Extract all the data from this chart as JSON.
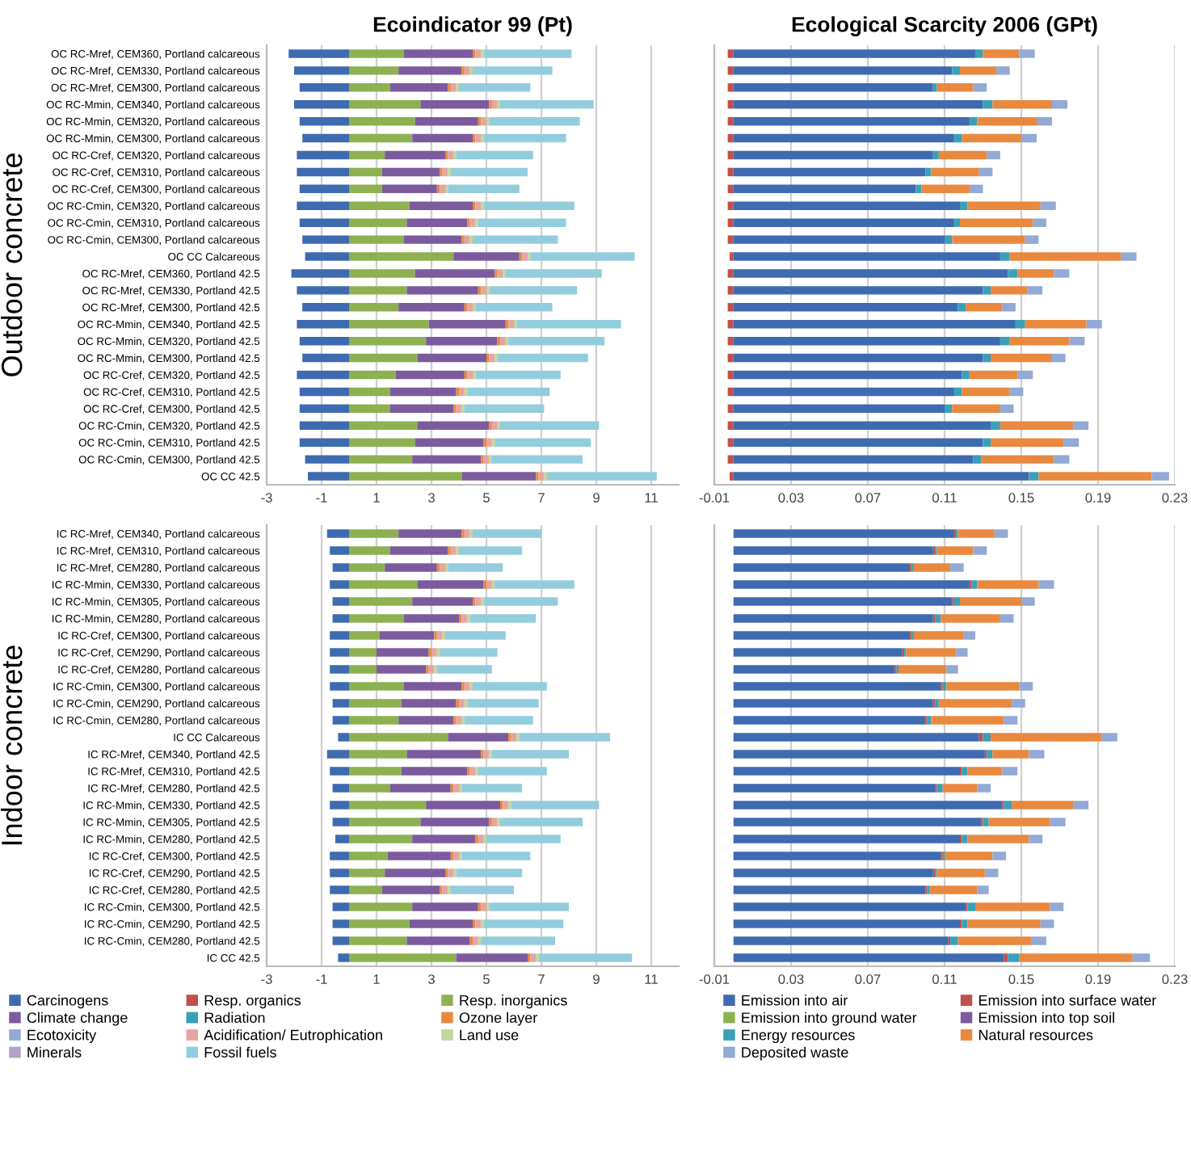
{
  "chart_data": [
    {
      "type": "bar",
      "orientation": "horizontal",
      "stacked": true,
      "title": "Ecoindicator 99 (Pt)",
      "annotations": [
        "Outdoor concrete"
      ],
      "categories": [
        "OC RC-Mref, CEM360, Portland calcareous",
        "OC RC-Mref, CEM330, Portland calcareous",
        "OC RC-Mref, CEM300, Portland calcareous",
        "OC RC-Mmin, CEM340, Portland calcareous",
        "OC RC-Mmin, CEM320, Portland calcareous",
        "OC RC-Mmin, CEM300, Portland calcareous",
        "OC RC-Cref, CEM320, Portland calcareous",
        "OC RC-Cref, CEM310, Portland calcareous",
        "OC RC-Cref, CEM300, Portland calcareous",
        "OC RC-Cmin, CEM320, Portland calcareous",
        "OC RC-Cmin, CEM310, Portland calcareous",
        "OC RC-Cmin, CEM300, Portland calcareous",
        "OC CC Calcareous",
        "OC RC-Mref, CEM360, Portland 42.5",
        "OC RC-Mref, CEM330, Portland 42.5",
        "OC RC-Mref, CEM300, Portland 42.5",
        "OC RC-Mmin, CEM340, Portland 42.5",
        "OC RC-Mmin, CEM320, Portland 42.5",
        "OC RC-Mmin, CEM300, Portland 42.5",
        "OC RC-Cref, CEM320, Portland 42.5",
        "OC RC-Cref, CEM310, Portland 42.5",
        "OC RC-Cref, CEM300, Portland 42.5",
        "OC RC-Cmin, CEM320, Portland 42.5",
        "OC RC-Cmin, CEM310, Portland 42.5",
        "OC RC-Cmin, CEM300, Portland 42.5",
        "OC CC 42.5"
      ],
      "series": [
        {
          "name": "Carcinogens",
          "color": "#3e6bb0",
          "values": [
            -2.2,
            -2.0,
            -1.8,
            -2.0,
            -1.8,
            -1.7,
            -1.9,
            -1.9,
            -1.8,
            -1.9,
            -1.8,
            -1.7,
            -1.6,
            -2.1,
            -1.9,
            -1.7,
            -1.9,
            -1.8,
            -1.7,
            -1.9,
            -1.8,
            -1.8,
            -1.8,
            -1.8,
            -1.6,
            -1.5
          ]
        },
        {
          "name": "Resp. organics",
          "color": "#c0504d",
          "values": [
            0,
            0,
            0,
            0,
            0,
            0,
            0,
            0,
            0,
            0,
            0,
            0,
            0,
            0,
            0,
            0,
            0,
            0,
            0,
            0,
            0,
            0,
            0,
            0,
            0,
            0
          ]
        },
        {
          "name": "Resp. inorganics",
          "color": "#8db150",
          "values": [
            2.0,
            1.8,
            1.5,
            2.6,
            2.4,
            2.3,
            1.3,
            1.2,
            1.2,
            2.2,
            2.1,
            2.0,
            3.8,
            2.4,
            2.1,
            1.8,
            2.9,
            2.8,
            2.5,
            1.7,
            1.5,
            1.5,
            2.5,
            2.4,
            2.3,
            4.1
          ]
        },
        {
          "name": "Climate change",
          "color": "#7b5b9e",
          "values": [
            2.5,
            2.3,
            2.1,
            2.5,
            2.3,
            2.2,
            2.2,
            2.1,
            2.0,
            2.3,
            2.2,
            2.1,
            2.4,
            2.9,
            2.6,
            2.4,
            2.8,
            2.6,
            2.5,
            2.5,
            2.4,
            2.3,
            2.6,
            2.5,
            2.5,
            2.7
          ]
        },
        {
          "name": "Radiation",
          "color": "#3aa0b8",
          "values": [
            0,
            0,
            0,
            0,
            0,
            0,
            0,
            0,
            0,
            0,
            0,
            0,
            0,
            0,
            0,
            0,
            0,
            0,
            0,
            0,
            0,
            0,
            0,
            0,
            0,
            0
          ]
        },
        {
          "name": "Ozone layer",
          "color": "#e8893f",
          "values": [
            0.1,
            0.1,
            0.1,
            0.1,
            0.1,
            0.1,
            0.1,
            0.1,
            0.1,
            0.1,
            0.1,
            0.1,
            0.1,
            0.1,
            0.1,
            0.1,
            0.1,
            0.1,
            0.1,
            0.1,
            0.1,
            0.1,
            0.1,
            0.1,
            0.1,
            0.1
          ]
        },
        {
          "name": "Ecotoxicity",
          "color": "#93a9d6",
          "values": [
            0,
            0,
            0,
            0,
            0,
            0,
            0,
            0,
            0,
            0,
            0,
            0,
            0,
            0,
            0,
            0,
            0,
            0,
            0,
            0,
            0,
            0,
            0,
            0,
            0,
            0
          ]
        },
        {
          "name": "Acidification/ Eutrophication",
          "color": "#e4a5a3",
          "values": [
            0.2,
            0.2,
            0.2,
            0.2,
            0.2,
            0.2,
            0.2,
            0.2,
            0.2,
            0.2,
            0.2,
            0.2,
            0.2,
            0.2,
            0.2,
            0.2,
            0.2,
            0.2,
            0.2,
            0.2,
            0.2,
            0.2,
            0.2,
            0.2,
            0.2,
            0.2
          ]
        },
        {
          "name": "Land use",
          "color": "#c3d69b",
          "values": [
            0.1,
            0.1,
            0.1,
            0.1,
            0.1,
            0.1,
            0.1,
            0.1,
            0.1,
            0.1,
            0.1,
            0.1,
            0.1,
            0.1,
            0.1,
            0.1,
            0.1,
            0.1,
            0.1,
            0.1,
            0.1,
            0.1,
            0.1,
            0.1,
            0.1,
            0.1
          ]
        },
        {
          "name": "Minerals",
          "color": "#b3a2c7",
          "values": [
            0,
            0,
            0,
            0,
            0,
            0,
            0,
            0,
            0,
            0,
            0,
            0,
            0,
            0,
            0,
            0,
            0,
            0,
            0,
            0,
            0,
            0,
            0,
            0,
            0,
            0
          ]
        },
        {
          "name": "Fossil fuels",
          "color": "#93cddd",
          "values": [
            3.2,
            2.9,
            2.6,
            3.4,
            3.3,
            3.0,
            2.8,
            2.8,
            2.6,
            3.3,
            3.2,
            3.1,
            3.8,
            3.5,
            3.2,
            2.8,
            3.8,
            3.5,
            3.3,
            3.1,
            3.0,
            2.9,
            3.6,
            3.5,
            3.3,
            4.0
          ]
        }
      ],
      "xlim": [
        -3,
        12
      ],
      "xticks": [
        -3,
        -1,
        1,
        3,
        5,
        7,
        9,
        11
      ],
      "grid": "x",
      "legend": "bottom"
    },
    {
      "type": "bar",
      "orientation": "horizontal",
      "stacked": true,
      "title": "Ecological Scarcity 2006 (GPt)",
      "categories": [
        null,
        null,
        null,
        null,
        null,
        null,
        null,
        null,
        null,
        null,
        null,
        null,
        null,
        null,
        null,
        null,
        null,
        null,
        null,
        null,
        null,
        null,
        null,
        null,
        null,
        null
      ],
      "series": [
        {
          "name": "Emission into air",
          "color": "#3e6bb0",
          "values": [
            0.126,
            0.114,
            0.104,
            0.13,
            0.123,
            0.115,
            0.104,
            0.1,
            0.095,
            0.118,
            0.115,
            0.11,
            0.139,
            0.143,
            0.13,
            0.117,
            0.147,
            0.139,
            0.13,
            0.119,
            0.115,
            0.11,
            0.134,
            0.13,
            0.125,
            0.154
          ]
        },
        {
          "name": "Emission into surface water",
          "color": "#c0504d",
          "values": [
            -0.003,
            -0.003,
            -0.003,
            -0.003,
            -0.003,
            -0.003,
            -0.003,
            -0.003,
            -0.003,
            -0.003,
            -0.003,
            -0.003,
            -0.002,
            -0.003,
            -0.003,
            -0.003,
            -0.003,
            -0.003,
            -0.003,
            -0.003,
            -0.003,
            -0.003,
            -0.003,
            -0.003,
            -0.003,
            -0.002
          ]
        },
        {
          "name": "Emission into ground water",
          "color": "#8db150",
          "values": [
            0,
            0,
            0,
            0,
            0,
            0,
            0,
            0,
            0,
            0,
            0,
            0,
            0,
            0,
            0,
            0,
            0,
            0,
            0,
            0,
            0,
            0,
            0,
            0,
            0,
            0
          ]
        },
        {
          "name": "Emission into top soil",
          "color": "#7b5b9e",
          "values": [
            0,
            0,
            0,
            0,
            0,
            0,
            0,
            0,
            0,
            0,
            0,
            0,
            0,
            0,
            0,
            0,
            0,
            0,
            0,
            0,
            0,
            0,
            0,
            0,
            0,
            0
          ]
        },
        {
          "name": "Energy resources",
          "color": "#3aa0b8",
          "values": [
            0.004,
            0.004,
            0.002,
            0.005,
            0.004,
            0.004,
            0.003,
            0.003,
            0.003,
            0.004,
            0.003,
            0.004,
            0.005,
            0.005,
            0.004,
            0.004,
            0.005,
            0.005,
            0.004,
            0.004,
            0.004,
            0.004,
            0.005,
            0.004,
            0.004,
            0.005
          ]
        },
        {
          "name": "Natural resources",
          "color": "#e8893f",
          "values": [
            0.019,
            0.019,
            0.019,
            0.031,
            0.031,
            0.031,
            0.025,
            0.025,
            0.025,
            0.038,
            0.038,
            0.038,
            0.058,
            0.019,
            0.019,
            0.019,
            0.032,
            0.031,
            0.032,
            0.025,
            0.025,
            0.025,
            0.038,
            0.038,
            0.038,
            0.059
          ]
        },
        {
          "name": "Deposited waste",
          "color": "#93a9d6",
          "values": [
            0.008,
            0.007,
            0.007,
            0.008,
            0.008,
            0.008,
            0.007,
            0.007,
            0.007,
            0.008,
            0.007,
            0.007,
            0.008,
            0.008,
            0.008,
            0.007,
            0.008,
            0.008,
            0.007,
            0.008,
            0.007,
            0.007,
            0.008,
            0.008,
            0.008,
            0.009
          ]
        }
      ],
      "xlim": [
        -0.01,
        0.23
      ],
      "xticks": [
        -0.01,
        0.03,
        0.07,
        0.11,
        0.15,
        0.19,
        0.23
      ],
      "grid": "x",
      "legend": "bottom"
    },
    {
      "type": "bar",
      "orientation": "horizontal",
      "stacked": true,
      "annotations": [
        "Indoor concrete"
      ],
      "categories": [
        "IC RC-Mref, CEM340, Portland calcareous",
        "IC RC-Mref, CEM310, Portland calcareous",
        "IC RC-Mref, CEM280, Portland calcareous",
        "IC RC-Mmin, CEM330, Portland calcareous",
        "IC RC-Mmin, CEM305, Portland calcareous",
        "IC RC-Mmin, CEM280, Portland calcareous",
        "IC RC-Cref, CEM300, Portland calcareous",
        "IC RC-Cref, CEM290, Portland calcareous",
        "IC RC-Cref, CEM280, Portland calcareous",
        "IC RC-Cmin, CEM300, Portland calcareous",
        "IC RC-Cmin, CEM290, Portland calcareous",
        "IC RC-Cmin, CEM280, Portland calcareous",
        "IC CC Calcareous",
        "IC RC-Mref, CEM340, Portland 42.5",
        "IC RC-Mref, CEM310, Portland 42.5",
        "IC RC-Mref, CEM280, Portland 42.5",
        "IC RC-Mmin, CEM330, Portland 42.5",
        "IC RC-Mmin, CEM305, Portland 42.5",
        "IC RC-Mmin, CEM280, Portland 42.5",
        "IC RC-Cref, CEM300, Portland 42.5",
        "IC RC-Cref, CEM290, Portland 42.5",
        "IC RC-Cref, CEM280, Portland 42.5",
        "IC RC-Cmin, CEM300, Portland 42.5",
        "IC RC-Cmin, CEM290, Portland 42.5",
        "IC RC-Cmin, CEM280, Portland 42.5",
        "IC CC 42.5"
      ],
      "series": [
        {
          "color": "#3e6bb0",
          "values": [
            -0.8,
            -0.7,
            -0.6,
            -0.7,
            -0.6,
            -0.6,
            -0.7,
            -0.7,
            -0.7,
            -0.7,
            -0.6,
            -0.6,
            -0.4,
            -0.8,
            -0.7,
            -0.6,
            -0.7,
            -0.6,
            -0.5,
            -0.7,
            -0.7,
            -0.7,
            -0.6,
            -0.6,
            -0.6,
            -0.4
          ]
        },
        {
          "color": "#c0504d",
          "values": [
            0,
            0,
            0,
            0,
            0,
            0,
            0,
            0,
            0,
            0,
            0,
            0,
            0,
            0,
            0,
            0,
            0,
            0,
            0,
            0,
            0,
            0,
            0,
            0,
            0,
            0
          ]
        },
        {
          "color": "#8db150",
          "values": [
            1.8,
            1.5,
            1.3,
            2.5,
            2.3,
            2.0,
            1.1,
            1.0,
            1.0,
            2.0,
            1.9,
            1.8,
            3.6,
            2.1,
            1.9,
            1.5,
            2.8,
            2.6,
            2.3,
            1.4,
            1.3,
            1.2,
            2.3,
            2.2,
            2.1,
            3.9
          ]
        },
        {
          "color": "#7b5b9e",
          "values": [
            2.3,
            2.1,
            1.9,
            2.4,
            2.2,
            2.0,
            2.0,
            1.9,
            1.8,
            2.1,
            2.0,
            2.0,
            2.2,
            2.7,
            2.4,
            2.2,
            2.7,
            2.5,
            2.3,
            2.3,
            2.2,
            2.1,
            2.4,
            2.3,
            2.3,
            2.6
          ]
        },
        {
          "color": "#3aa0b8",
          "values": [
            0,
            0,
            0,
            0,
            0,
            0,
            0,
            0,
            0,
            0,
            0,
            0,
            0,
            0,
            0,
            0,
            0,
            0,
            0,
            0,
            0,
            0,
            0,
            0,
            0,
            0
          ]
        },
        {
          "color": "#e8893f",
          "values": [
            0.1,
            0.1,
            0.1,
            0.1,
            0.1,
            0.1,
            0.1,
            0.1,
            0.1,
            0.1,
            0.1,
            0.1,
            0.1,
            0.1,
            0.1,
            0.1,
            0.1,
            0.1,
            0.1,
            0.1,
            0.1,
            0.1,
            0.1,
            0.1,
            0.1,
            0.1
          ]
        },
        {
          "color": "#93a9d6",
          "values": [
            0,
            0,
            0,
            0,
            0,
            0,
            0,
            0,
            0,
            0,
            0,
            0,
            0,
            0,
            0,
            0,
            0,
            0,
            0,
            0,
            0,
            0,
            0,
            0,
            0,
            0
          ]
        },
        {
          "color": "#e4a5a3",
          "values": [
            0.2,
            0.2,
            0.2,
            0.2,
            0.2,
            0.2,
            0.2,
            0.2,
            0.2,
            0.2,
            0.2,
            0.2,
            0.2,
            0.2,
            0.2,
            0.2,
            0.2,
            0.2,
            0.2,
            0.2,
            0.2,
            0.2,
            0.2,
            0.2,
            0.2,
            0.2
          ]
        },
        {
          "color": "#c3d69b",
          "values": [
            0.1,
            0.1,
            0.1,
            0.1,
            0.1,
            0.1,
            0.1,
            0.1,
            0.1,
            0.1,
            0.1,
            0.1,
            0.1,
            0.1,
            0.1,
            0.1,
            0.1,
            0.1,
            0.1,
            0.1,
            0.1,
            0.1,
            0.1,
            0.1,
            0.1,
            0.1
          ]
        },
        {
          "color": "#b3a2c7",
          "values": [
            0,
            0,
            0,
            0,
            0,
            0,
            0,
            0,
            0,
            0,
            0,
            0,
            0,
            0,
            0,
            0,
            0,
            0,
            0,
            0,
            0,
            0,
            0,
            0,
            0,
            0
          ]
        },
        {
          "color": "#93cddd",
          "values": [
            2.5,
            2.3,
            2.0,
            2.9,
            2.7,
            2.4,
            2.2,
            2.1,
            2.0,
            2.7,
            2.6,
            2.5,
            3.3,
            2.8,
            2.5,
            2.2,
            3.2,
            3.0,
            2.7,
            2.5,
            2.4,
            2.3,
            2.9,
            2.9,
            2.7,
            3.4
          ]
        }
      ],
      "xlim": [
        -3,
        12
      ],
      "xticks": [
        -3,
        -1,
        1,
        3,
        5,
        7,
        9,
        11
      ],
      "grid": "x"
    },
    {
      "type": "bar",
      "orientation": "horizontal",
      "stacked": true,
      "categories": [
        null,
        null,
        null,
        null,
        null,
        null,
        null,
        null,
        null,
        null,
        null,
        null,
        null,
        null,
        null,
        null,
        null,
        null,
        null,
        null,
        null,
        null,
        null,
        null,
        null,
        null
      ],
      "series": [
        {
          "color": "#3e6bb0",
          "values": [
            0.115,
            0.104,
            0.092,
            0.123,
            0.114,
            0.104,
            0.092,
            0.088,
            0.084,
            0.108,
            0.104,
            0.1,
            0.128,
            0.131,
            0.118,
            0.105,
            0.14,
            0.129,
            0.118,
            0.108,
            0.104,
            0.1,
            0.121,
            0.118,
            0.112,
            0.141
          ]
        },
        {
          "color": "#c0504d",
          "values": [
            0.001,
            0.001,
            0.001,
            0.001,
            0.001,
            0.001,
            0.001,
            0.001,
            0.001,
            0.001,
            0.001,
            0.001,
            0.002,
            0.001,
            0.001,
            0.001,
            0.001,
            0.001,
            0.001,
            0.001,
            0.001,
            0.001,
            0.001,
            0.001,
            0.001,
            0.002
          ]
        },
        {
          "color": "#8db150",
          "values": [
            0,
            0,
            0,
            0,
            0,
            0,
            0,
            0,
            0,
            0,
            0,
            0,
            0,
            0,
            0,
            0,
            0,
            0,
            0,
            0,
            0,
            0,
            0,
            0,
            0,
            0
          ]
        },
        {
          "color": "#7b5b9e",
          "values": [
            0,
            0,
            0,
            0,
            0,
            0,
            0,
            0,
            0,
            0,
            0,
            0,
            0,
            0,
            0,
            0,
            0,
            0,
            0,
            0,
            0,
            0,
            0,
            0,
            0,
            0
          ]
        },
        {
          "color": "#3aa0b8",
          "values": [
            0.001,
            0.001,
            0.001,
            0.003,
            0.003,
            0.003,
            0.001,
            0.001,
            0.001,
            0.002,
            0.002,
            0.002,
            0.004,
            0.003,
            0.003,
            0.003,
            0.004,
            0.003,
            0.003,
            0.001,
            0.001,
            0.001,
            0.004,
            0.003,
            0.004,
            0.006
          ]
        },
        {
          "color": "#e8893f",
          "values": [
            0.019,
            0.019,
            0.019,
            0.032,
            0.032,
            0.031,
            0.026,
            0.026,
            0.025,
            0.038,
            0.038,
            0.038,
            0.058,
            0.019,
            0.018,
            0.018,
            0.032,
            0.032,
            0.032,
            0.025,
            0.025,
            0.025,
            0.039,
            0.038,
            0.038,
            0.059
          ]
        },
        {
          "color": "#93a9d6",
          "values": [
            0.007,
            0.007,
            0.007,
            0.008,
            0.007,
            0.007,
            0.006,
            0.006,
            0.006,
            0.007,
            0.007,
            0.007,
            0.008,
            0.008,
            0.008,
            0.007,
            0.008,
            0.008,
            0.007,
            0.007,
            0.007,
            0.006,
            0.007,
            0.007,
            0.008,
            0.009
          ]
        }
      ],
      "xlim": [
        -0.01,
        0.23
      ],
      "xticks": [
        -0.01,
        0.03,
        0.07,
        0.11,
        0.15,
        0.19,
        0.23
      ],
      "grid": "x"
    }
  ]
}
